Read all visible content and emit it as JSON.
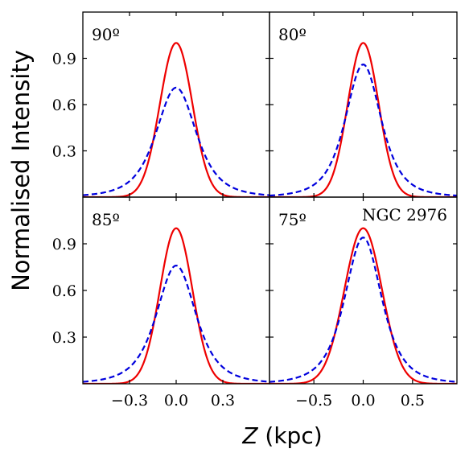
{
  "figure": {
    "ylabel": "Normalised Intensity",
    "xlabel_var": "Z",
    "xlabel_unit": " (kpc)",
    "annotation": "NGC 2976"
  },
  "colors": {
    "solid": "#ee0000",
    "dashed": "#0000dd",
    "axes": "#000000"
  },
  "chart_data": [
    {
      "type": "line",
      "panel": "top-left",
      "label": "90º",
      "xlim": [
        -0.6,
        0.6
      ],
      "ylim": [
        0,
        1.2
      ],
      "yticks": [
        0.3,
        0.6,
        0.9
      ],
      "ytick_labels": [
        "0.3",
        "0.6",
        "0.9"
      ],
      "xticks": [
        -0.3,
        0.0,
        0.3
      ],
      "xtick_labels": [],
      "series": [
        {
          "style": "solid",
          "profile": "gaussian",
          "x": [
            -0.6,
            -0.4,
            -0.2,
            -0.1,
            0.0,
            0.1,
            0.2,
            0.4,
            0.6
          ],
          "y": [
            0.0,
            0.0,
            0.16,
            0.64,
            1.0,
            0.64,
            0.16,
            0.0,
            0.0
          ]
        },
        {
          "style": "dashed",
          "profile": "lorentzian",
          "x": [
            -0.6,
            -0.4,
            -0.2,
            -0.1,
            0.0,
            0.1,
            0.2,
            0.4,
            0.6
          ],
          "y": [
            0.01,
            0.05,
            0.24,
            0.5,
            0.71,
            0.5,
            0.24,
            0.05,
            0.01
          ]
        }
      ]
    },
    {
      "type": "line",
      "panel": "top-right",
      "label": "80º",
      "xlim": [
        -0.95,
        0.95
      ],
      "ylim": [
        0,
        1.2
      ],
      "yticks": [
        0.3,
        0.6,
        0.9
      ],
      "ytick_labels": [],
      "xticks": [
        -0.5,
        0.0,
        0.5
      ],
      "xtick_labels": [],
      "series": [
        {
          "style": "solid",
          "profile": "gaussian",
          "x": [
            -0.95,
            -0.6,
            -0.3,
            -0.15,
            0.0,
            0.15,
            0.3,
            0.6,
            0.95
          ],
          "y": [
            0.0,
            0.0,
            0.16,
            0.64,
            1.0,
            0.64,
            0.16,
            0.0,
            0.0
          ]
        },
        {
          "style": "dashed",
          "profile": "lorentzian",
          "x": [
            -0.95,
            -0.6,
            -0.3,
            -0.15,
            0.0,
            0.15,
            0.3,
            0.6,
            0.95
          ],
          "y": [
            0.0,
            0.01,
            0.26,
            0.62,
            0.86,
            0.62,
            0.26,
            0.01,
            0.0
          ]
        }
      ]
    },
    {
      "type": "line",
      "panel": "bottom-left",
      "label": "85º",
      "xlim": [
        -0.6,
        0.6
      ],
      "ylim": [
        0,
        1.2
      ],
      "yticks": [
        0.3,
        0.6,
        0.9
      ],
      "ytick_labels": [
        "0.3",
        "0.6",
        "0.9"
      ],
      "xticks": [
        -0.3,
        0.0,
        0.3
      ],
      "xtick_labels": [
        "−0.3",
        "0.0",
        "0.3"
      ],
      "series": [
        {
          "style": "solid",
          "profile": "gaussian",
          "x": [
            -0.6,
            -0.4,
            -0.2,
            -0.1,
            0.0,
            0.1,
            0.2,
            0.4,
            0.6
          ],
          "y": [
            0.0,
            0.0,
            0.16,
            0.64,
            1.0,
            0.64,
            0.16,
            0.0,
            0.0
          ]
        },
        {
          "style": "dashed",
          "profile": "lorentzian",
          "x": [
            -0.6,
            -0.4,
            -0.2,
            -0.1,
            0.0,
            0.1,
            0.2,
            0.4,
            0.6
          ],
          "y": [
            0.01,
            0.04,
            0.25,
            0.55,
            0.76,
            0.55,
            0.25,
            0.04,
            0.01
          ]
        }
      ]
    },
    {
      "type": "line",
      "panel": "bottom-right",
      "label": "75º",
      "xlim": [
        -0.95,
        0.95
      ],
      "ylim": [
        0,
        1.2
      ],
      "yticks": [
        0.3,
        0.6,
        0.9
      ],
      "ytick_labels": [],
      "xticks": [
        -0.5,
        0.0,
        0.5
      ],
      "xtick_labels": [
        "−0.5",
        "0.0",
        "0.5"
      ],
      "series": [
        {
          "style": "solid",
          "profile": "gaussian",
          "x": [
            -0.95,
            -0.6,
            -0.3,
            -0.15,
            0.0,
            0.15,
            0.3,
            0.6,
            0.95
          ],
          "y": [
            0.0,
            0.0,
            0.29,
            0.74,
            1.0,
            0.74,
            0.29,
            0.0,
            0.0
          ]
        },
        {
          "style": "dashed",
          "profile": "lorentzian",
          "x": [
            -0.95,
            -0.6,
            -0.3,
            -0.15,
            0.0,
            0.15,
            0.3,
            0.6,
            0.95
          ],
          "y": [
            0.0,
            0.02,
            0.3,
            0.72,
            0.94,
            0.72,
            0.3,
            0.02,
            0.0
          ]
        }
      ]
    }
  ]
}
